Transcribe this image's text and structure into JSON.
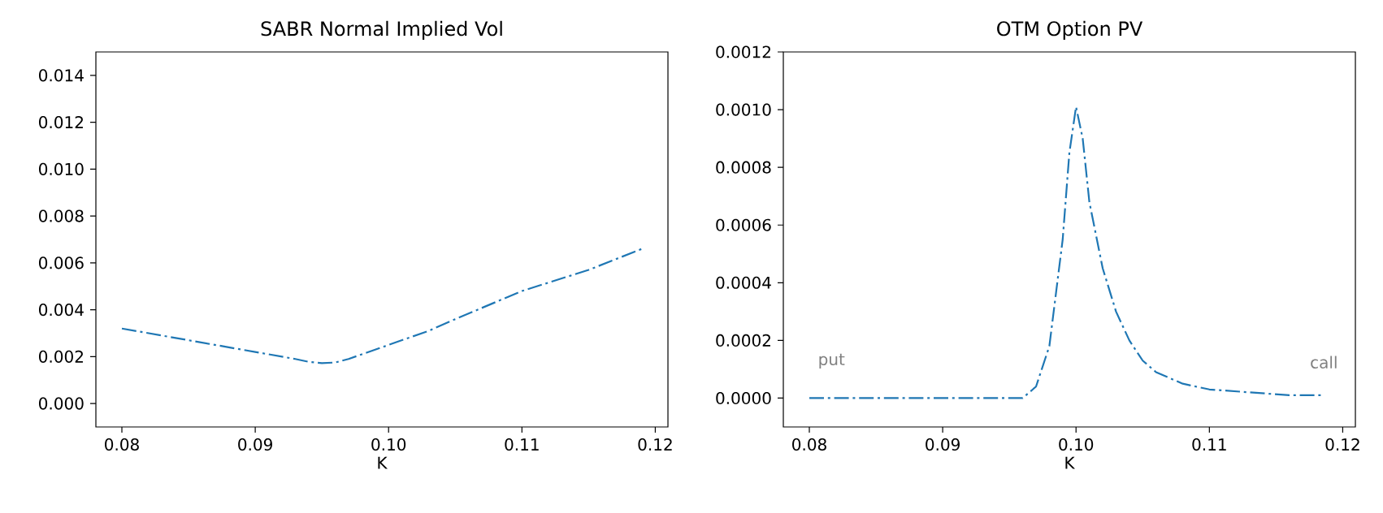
{
  "chart_data": [
    {
      "type": "line",
      "title": "SABR Normal Implied Vol",
      "xlabel": "K",
      "color": "#1f77b4",
      "line_style": "dashdot",
      "x": [
        0.08,
        0.085,
        0.09,
        0.093,
        0.094,
        0.095,
        0.096,
        0.097,
        0.098,
        0.1,
        0.103,
        0.105,
        0.11,
        0.115,
        0.119
      ],
      "values": [
        0.0032,
        0.0027,
        0.0022,
        0.0019,
        0.00178,
        0.00172,
        0.00175,
        0.0019,
        0.0021,
        0.0025,
        0.0031,
        0.0036,
        0.0048,
        0.0057,
        0.0066
      ],
      "xlim": [
        0.07805,
        0.12095
      ],
      "ylim": [
        -0.001,
        0.015
      ],
      "xticks": [
        {
          "value": 0.08,
          "label": "0.08"
        },
        {
          "value": 0.09,
          "label": "0.09"
        },
        {
          "value": 0.1,
          "label": "0.10"
        },
        {
          "value": 0.11,
          "label": "0.11"
        },
        {
          "value": 0.12,
          "label": "0.12"
        }
      ],
      "yticks": [
        {
          "value": 0,
          "label": "0.000"
        },
        {
          "value": 0.002,
          "label": "0.002"
        },
        {
          "value": 0.004,
          "label": "0.004"
        },
        {
          "value": 0.006,
          "label": "0.006"
        },
        {
          "value": 0.008,
          "label": "0.008"
        },
        {
          "value": 0.01,
          "label": "0.010"
        },
        {
          "value": 0.012,
          "label": "0.012"
        },
        {
          "value": 0.014,
          "label": "0.014"
        }
      ]
    },
    {
      "type": "line",
      "title": "OTM Option PV",
      "xlabel": "K",
      "color": "#1f77b4",
      "line_style": "dashdot",
      "x": [
        0.08,
        0.085,
        0.09,
        0.095,
        0.096,
        0.097,
        0.098,
        0.099,
        0.0995,
        0.1,
        0.1005,
        0.101,
        0.102,
        0.103,
        0.104,
        0.105,
        0.106,
        0.108,
        0.11,
        0.113,
        0.116,
        0.1185
      ],
      "values": [
        0,
        0,
        0,
        0,
        0,
        4e-05,
        0.00018,
        0.00055,
        0.00085,
        0.00101,
        0.0009,
        0.00068,
        0.00045,
        0.0003,
        0.0002,
        0.00013,
        9e-05,
        5e-05,
        3e-05,
        2e-05,
        1e-05,
        1e-05
      ],
      "xlim": [
        0.07805,
        0.12095
      ],
      "ylim": [
        -0.0001,
        0.0012
      ],
      "xticks": [
        {
          "value": 0.08,
          "label": "0.08"
        },
        {
          "value": 0.09,
          "label": "0.09"
        },
        {
          "value": 0.1,
          "label": "0.10"
        },
        {
          "value": 0.11,
          "label": "0.11"
        },
        {
          "value": 0.12,
          "label": "0.12"
        }
      ],
      "yticks": [
        {
          "value": 0,
          "label": "0.0000"
        },
        {
          "value": 0.0002,
          "label": "0.0002"
        },
        {
          "value": 0.0004,
          "label": "0.0004"
        },
        {
          "value": 0.0006,
          "label": "0.0006"
        },
        {
          "value": 0.0008,
          "label": "0.0008"
        },
        {
          "value": 0.001,
          "label": "0.0010"
        },
        {
          "value": 0.0012,
          "label": "0.0012"
        }
      ],
      "annotations": [
        "put",
        "call"
      ]
    }
  ]
}
